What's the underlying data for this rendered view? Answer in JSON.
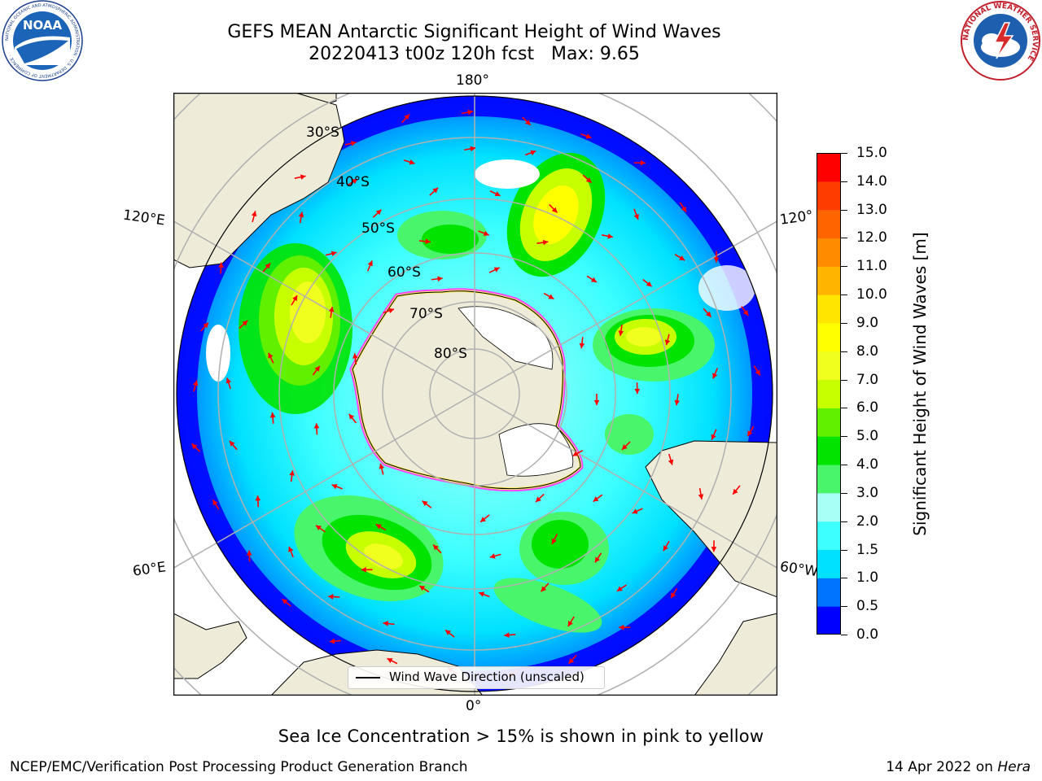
{
  "header": {
    "title_line_1": "GEFS MEAN Antarctic Significant Height of Wind Waves",
    "title_line_2": "20220413 t00z 120h fcst   Max: 9.65"
  },
  "logos": {
    "noaa": {
      "text": "NOAA",
      "ring_text": "NATIONAL OCEANIC AND ATMOSPHERIC ADMINISTRATION · U.S. DEPARTMENT OF COMMERCE ·",
      "icon": "noaa-logo"
    },
    "nws": {
      "ring_text": "NATIONAL WEATHER SERVICE",
      "icon": "nws-logo"
    }
  },
  "map": {
    "longitude_labels": {
      "top": "180°",
      "bottom": "0°",
      "upper_left": "120°E",
      "upper_right": "120°",
      "lower_left": "60°E",
      "lower_right": "60°W"
    },
    "latitude_labels": [
      "30°S",
      "40°S",
      "50°S",
      "60°S",
      "70°S",
      "80°S"
    ],
    "legend_label": "Wind Wave Direction (unscaled)",
    "colors": {
      "land": "#eeebd9",
      "ocean_missing": "#ffffff",
      "sea_ice_edge": [
        "#ff44ff",
        "#ffee66"
      ],
      "arrows": "#ff0000"
    }
  },
  "colorbar": {
    "label": "Significant Height of Wind Waves [m]",
    "ticks": [
      "0.0",
      "0.5",
      "1.0",
      "1.5",
      "2.0",
      "3.0",
      "4.0",
      "5.0",
      "6.0",
      "7.0",
      "8.0",
      "9.0",
      "10.0",
      "11.0",
      "12.0",
      "13.0",
      "14.0",
      "15.0"
    ],
    "colors": [
      "#0000ff",
      "#0074ff",
      "#00e1ff",
      "#3dffff",
      "#a8fff5",
      "#49f56b",
      "#00e400",
      "#61f000",
      "#c8ff00",
      "#f0ff1e",
      "#ffff00",
      "#ffe600",
      "#ffb400",
      "#ff8c00",
      "#ff6400",
      "#ff3c00",
      "#ff0000"
    ]
  },
  "footer": {
    "note": "Sea Ice Concentration > 15% is shown in pink to yellow",
    "credit": "NCEP/EMC/Verification Post Processing Product Generation Branch",
    "date": "14 Apr 2022 on",
    "host": "Hera"
  }
}
